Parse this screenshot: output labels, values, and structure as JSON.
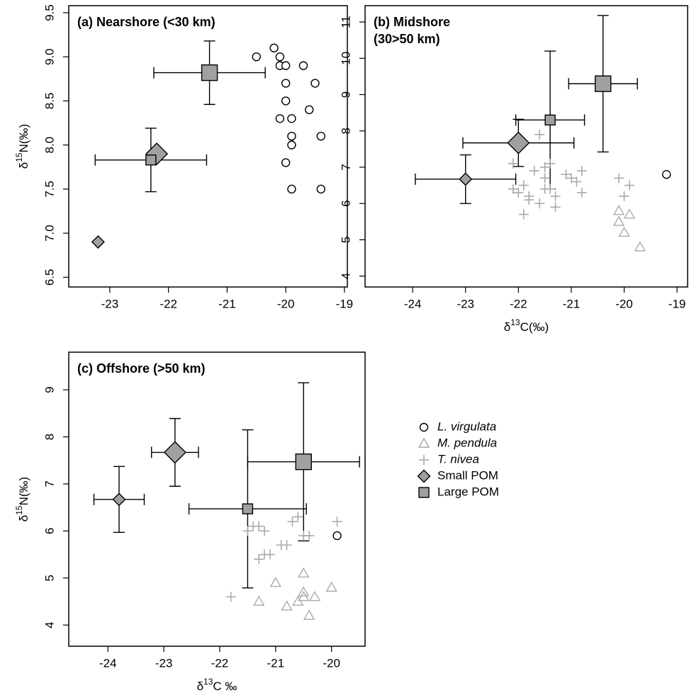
{
  "chart_data": [
    {
      "type": "scatter",
      "title": [
        "(a) Nearshore (<30 km)"
      ],
      "y_label": {
        "prefix": "δ",
        "sup": "15",
        "rest": "N(‰)"
      },
      "xlim": [
        -23.7,
        -18.95
      ],
      "xticks": [
        -23,
        -22,
        -21,
        -20,
        -19
      ],
      "ylim": [
        6.39,
        9.58
      ],
      "yticks": [
        6.5,
        {
          "value": 7,
          "label": "7.0"
        },
        7.5,
        {
          "value": 8,
          "label": "8.0"
        },
        8.5,
        {
          "value": 9,
          "label": "9.0"
        },
        9.5
      ],
      "series": [
        {
          "name": "L. virgulata",
          "marker": "circle",
          "color": "#000000",
          "x": [
            -20.5,
            -20.2,
            -20.1,
            -20.1,
            -20.0,
            -19.7,
            -20.0,
            -19.5,
            -20.0,
            -19.6,
            -20.1,
            -19.9,
            -19.9,
            -19.4,
            -19.9,
            -20.0,
            -19.9,
            -19.4
          ],
          "values": [
            9.0,
            9.1,
            9.0,
            8.9,
            8.9,
            8.9,
            8.7,
            8.7,
            8.5,
            8.4,
            8.3,
            8.3,
            8.1,
            8.1,
            8.0,
            7.8,
            7.5,
            7.5
          ]
        },
        {
          "name": "Small POM",
          "marker": "diamond",
          "color": "#a0a0a0",
          "x": [
            -23.2,
            -22.2
          ],
          "values": [
            6.9,
            7.9
          ],
          "xerr": [
            null,
            null
          ],
          "yerr": [
            null,
            null
          ],
          "marker_size": [
            "small",
            "large"
          ]
        },
        {
          "name": "Large POM",
          "marker": "square",
          "color": "#a0a0a0",
          "x": [
            -22.3,
            -21.3
          ],
          "values": [
            7.83,
            8.82
          ],
          "xerr": [
            0.95,
            0.95
          ],
          "yerr": [
            0.36,
            0.36
          ],
          "marker_size": [
            "small",
            "large"
          ]
        }
      ]
    },
    {
      "type": "scatter",
      "title": [
        "(b) Midshore",
        "(30>50 km)"
      ],
      "x_label": {
        "prefix": "δ",
        "sup": "13",
        "rest": "C(‰)"
      },
      "xlim": [
        -24.9,
        -18.8
      ],
      "xticks": [
        -24,
        -23,
        -22,
        -21,
        -20,
        -19
      ],
      "ylim": [
        3.7,
        11.45
      ],
      "yticks": [
        4,
        5,
        6,
        7,
        8,
        9,
        10,
        11
      ],
      "series": [
        {
          "name": "L. virgulata",
          "marker": "circle",
          "color": "#000000",
          "x": [
            -19.2
          ],
          "values": [
            6.8
          ]
        },
        {
          "name": "M. pendula",
          "marker": "triangle",
          "color": "#aaaaaa",
          "x": [
            -20.1,
            -19.9,
            -20.1,
            -20.0,
            -19.7
          ],
          "values": [
            5.8,
            5.7,
            5.5,
            5.2,
            4.8
          ]
        },
        {
          "name": "T. nivea",
          "marker": "cross",
          "color": "#aaaaaa",
          "x": [
            -21.6,
            -22.1,
            -21.4,
            -21.7,
            -21.5,
            -21.1,
            -20.8,
            -20.9,
            -21.9,
            -22.1,
            -22.0,
            -21.8,
            -21.8,
            -21.9,
            -21.6,
            -21.5,
            -21.3,
            -21.3,
            -21.0,
            -20.8,
            -21.5,
            -20.1,
            -20.0,
            -19.9,
            -21.4
          ],
          "values": [
            7.9,
            7.1,
            7.1,
            6.9,
            7.0,
            6.8,
            6.9,
            6.6,
            6.5,
            6.4,
            6.3,
            6.2,
            6.1,
            5.7,
            6.0,
            6.4,
            6.2,
            5.9,
            6.7,
            6.3,
            6.7,
            6.7,
            6.2,
            6.5,
            6.4
          ]
        },
        {
          "name": "Small POM",
          "marker": "diamond",
          "color": "#a0a0a0",
          "x": [
            -23.0,
            -22.0
          ],
          "values": [
            6.67,
            7.67
          ],
          "xerr": [
            0.95,
            1.05
          ],
          "yerr": [
            0.67,
            0.65
          ],
          "marker_size": [
            "small",
            "large"
          ]
        },
        {
          "name": "Large POM",
          "marker": "square",
          "color": "#a0a0a0",
          "x": [
            -21.4,
            -20.4
          ],
          "values": [
            8.3,
            9.3
          ],
          "xerr": [
            0.65,
            0.65
          ],
          "yerr": [
            1.9,
            1.88
          ],
          "marker_size": [
            "small",
            "large"
          ]
        }
      ]
    },
    {
      "type": "scatter",
      "title": [
        "(c) Offshore (>50 km)"
      ],
      "x_label": {
        "prefix": "δ",
        "sup": "13",
        "rest": "C ‰"
      },
      "y_label": {
        "prefix": "δ",
        "sup": "15",
        "rest": "N(‰)"
      },
      "xlim": [
        -24.7,
        -19.4
      ],
      "xticks": [
        -24,
        -23,
        -22,
        -21,
        -20
      ],
      "ylim": [
        3.55,
        9.8
      ],
      "yticks": [
        4,
        5,
        6,
        7,
        8,
        9
      ],
      "series": [
        {
          "name": "L. virgulata",
          "marker": "circle",
          "color": "#000000",
          "x": [
            -19.9
          ],
          "values": [
            5.9
          ]
        },
        {
          "name": "M. pendula",
          "marker": "triangle",
          "color": "#aaaaaa",
          "x": [
            -20.5,
            -21.0,
            -21.3,
            -20.8,
            -20.5,
            -20.6,
            -20.5,
            -20.3,
            -20.4,
            -20.0
          ],
          "values": [
            5.1,
            4.9,
            4.5,
            4.4,
            4.7,
            4.5,
            4.6,
            4.6,
            4.2,
            4.8
          ]
        },
        {
          "name": "T. nivea",
          "marker": "cross",
          "color": "#aaaaaa",
          "x": [
            -21.8,
            -21.4,
            -21.3,
            -21.5,
            -21.2,
            -21.3,
            -21.2,
            -21.1,
            -20.9,
            -20.8,
            -20.7,
            -20.6,
            -20.5,
            -20.4,
            -19.9
          ],
          "values": [
            4.6,
            6.1,
            6.1,
            6.0,
            6.0,
            5.4,
            5.5,
            5.5,
            5.7,
            5.7,
            6.2,
            6.3,
            5.9,
            5.9,
            6.2
          ]
        },
        {
          "name": "Small POM",
          "marker": "diamond",
          "color": "#a0a0a0",
          "x": [
            -23.8,
            -22.8
          ],
          "values": [
            6.67,
            7.67
          ],
          "xerr": [
            0.45,
            0.42
          ],
          "yerr": [
            0.7,
            0.72
          ],
          "marker_size": [
            "small",
            "large"
          ]
        },
        {
          "name": "Large POM",
          "marker": "square",
          "color": "#a0a0a0",
          "x": [
            -21.5,
            -20.5
          ],
          "values": [
            6.47,
            7.47
          ],
          "xerr": [
            1.05,
            1.0
          ],
          "yerr": [
            1.68,
            1.68
          ],
          "marker_size": [
            "small",
            "large"
          ]
        }
      ]
    }
  ]
}
